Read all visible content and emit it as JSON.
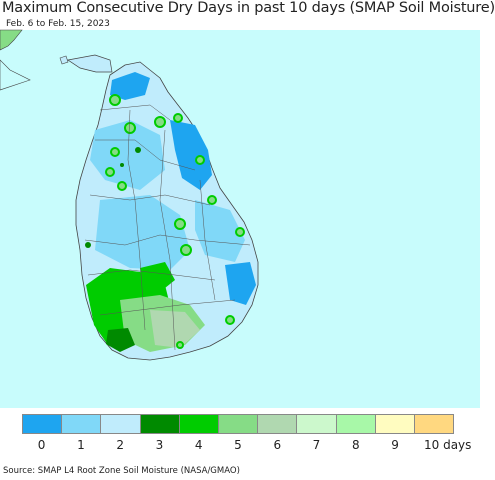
{
  "title": "Maximum Consecutive Dry Days in past 10 days (SMAP Soil Moisture)",
  "subtitle": "Feb. 6 to Feb. 15, 2023",
  "source": "Source: SMAP L4 Root Zone Soil Moisture (NASA/GMAO)",
  "legend": {
    "colors": [
      "#1ea5f0",
      "#80d8f8",
      "#c0ecfc",
      "#008a00",
      "#00cc00",
      "#86dc86",
      "#b0d8b0",
      "#ccf8cc",
      "#a8f8a8",
      "#fffcc0",
      "#ffd880"
    ],
    "labels": [
      "0",
      "1",
      "2",
      "3",
      "4",
      "5",
      "6",
      "7",
      "8",
      "9",
      "10 days"
    ]
  },
  "colors": {
    "ocean": "#c8fcfc",
    "land_base": "#c0ecfc",
    "border": "#555555"
  }
}
